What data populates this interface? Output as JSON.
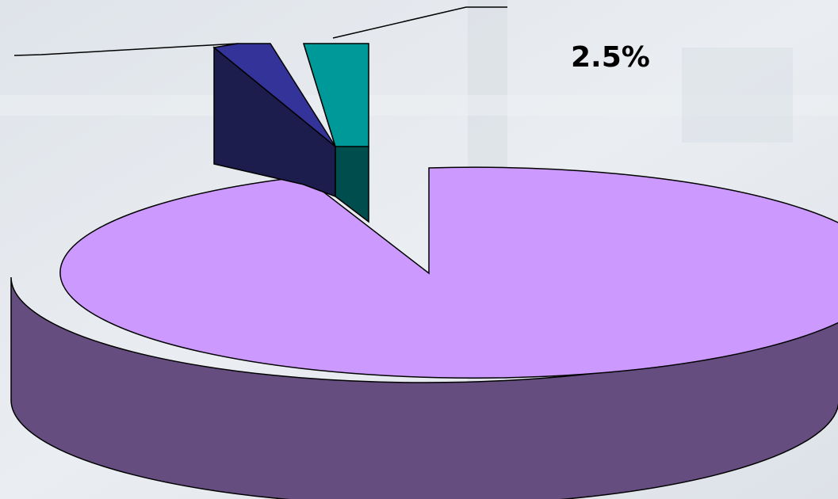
{
  "chart_data": {
    "type": "pie",
    "style": "3d-exploded",
    "title": "",
    "slices": [
      {
        "label": "",
        "value": 90.0,
        "color": "#cc99ff",
        "side_color": "#664d80",
        "data_label": ""
      },
      {
        "label": "",
        "value": 2.5,
        "color": "#009999",
        "side_color": "#004d4d",
        "data_label": "2.5%"
      },
      {
        "label": "",
        "value": 7.5,
        "color": "#333399",
        "side_color": "#1c1c4d",
        "data_label": ""
      }
    ]
  }
}
